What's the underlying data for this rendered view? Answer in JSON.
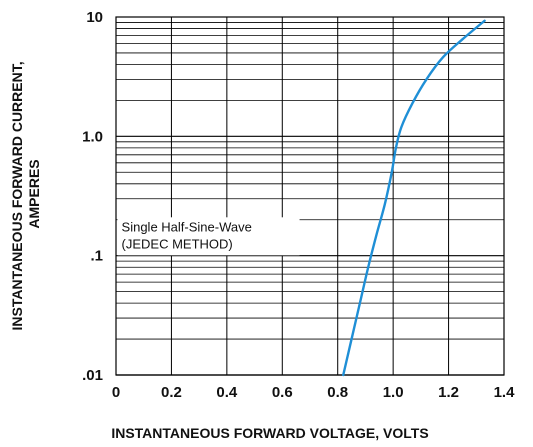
{
  "chart_data": {
    "type": "line",
    "xlabel": "INSTANTANEOUS FORWARD VOLTAGE, VOLTS",
    "ylabel_lines": [
      "INSTANTANEOUS FORWARD CURRENT,",
      "AMPERES"
    ],
    "x_scale": "linear",
    "y_scale": "log",
    "xlim": [
      0,
      1.4
    ],
    "ylim": [
      0.01,
      10
    ],
    "grid": true,
    "x_ticks": [
      {
        "value": 0,
        "label": "0"
      },
      {
        "value": 0.2,
        "label": "0.2"
      },
      {
        "value": 0.4,
        "label": "0.4"
      },
      {
        "value": 0.6,
        "label": "0.6"
      },
      {
        "value": 0.8,
        "label": "0.8"
      },
      {
        "value": 1.0,
        "label": "1.0"
      },
      {
        "value": 1.2,
        "label": "1.2"
      },
      {
        "value": 1.4,
        "label": "1.4"
      }
    ],
    "y_ticks": [
      {
        "value": 0.01,
        "label": ".01"
      },
      {
        "value": 0.1,
        "label": ".1"
      },
      {
        "value": 1,
        "label": "1.0"
      },
      {
        "value": 10,
        "label": "10"
      }
    ],
    "annotation": {
      "lines": [
        "Single Half-Sine-Wave",
        "(JEDEC METHOD)"
      ],
      "anchor_x": 0.02,
      "anchor_y": 0.16
    },
    "series": [
      {
        "color": "#1f8fd6",
        "points": [
          {
            "x": 0.82,
            "y": 0.01
          },
          {
            "x": 0.85,
            "y": 0.02
          },
          {
            "x": 0.88,
            "y": 0.04
          },
          {
            "x": 0.91,
            "y": 0.08
          },
          {
            "x": 0.94,
            "y": 0.15
          },
          {
            "x": 0.97,
            "y": 0.27
          },
          {
            "x": 0.995,
            "y": 0.5
          },
          {
            "x": 1.01,
            "y": 0.8
          },
          {
            "x": 1.03,
            "y": 1.2
          },
          {
            "x": 1.07,
            "y": 1.9
          },
          {
            "x": 1.12,
            "y": 3.0
          },
          {
            "x": 1.18,
            "y": 4.6
          },
          {
            "x": 1.25,
            "y": 6.5
          },
          {
            "x": 1.33,
            "y": 9.3
          }
        ]
      }
    ]
  }
}
